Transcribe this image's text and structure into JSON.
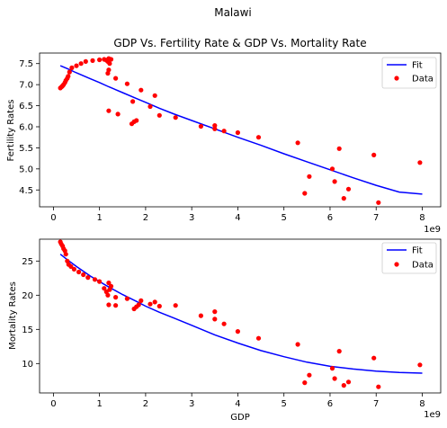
{
  "figure": {
    "suptitle": "Malawi"
  },
  "chart_data": [
    {
      "type": "scatter",
      "title": "GDP Vs. Fertility Rate & GDP Vs. Mortality Rate",
      "xlabel": "",
      "ylabel": "Fertility Rates",
      "xlim": [
        -0.3,
        8.4
      ],
      "ylim": [
        4.1,
        7.75
      ],
      "x_offset_text": "1e9",
      "x_ticks": [
        0,
        1,
        2,
        3,
        4,
        5,
        6,
        7,
        8
      ],
      "y_ticks": [
        4.5,
        5.0,
        5.5,
        6.0,
        6.5,
        7.0,
        7.5
      ],
      "y_tick_labels": [
        "4.5",
        "5.0",
        "5.5",
        "6.0",
        "6.5",
        "7.0",
        "7.5"
      ],
      "legend": {
        "position": "top-right",
        "entries": [
          "Fit",
          "Data"
        ]
      },
      "colors": {
        "fit": "#0000ff",
        "data": "#ff0000"
      },
      "series": [
        {
          "name": "Fit",
          "kind": "line",
          "x": [
            0.15,
            0.3,
            0.5,
            0.8,
            1.0,
            1.2,
            1.5,
            1.8,
            2.0,
            2.3,
            2.6,
            3.0,
            3.5,
            4.0,
            4.5,
            5.0,
            5.5,
            6.0,
            6.5,
            7.0,
            7.5,
            8.0
          ],
          "y": [
            7.45,
            7.38,
            7.28,
            7.14,
            7.05,
            6.95,
            6.81,
            6.67,
            6.58,
            6.44,
            6.31,
            6.15,
            5.95,
            5.75,
            5.56,
            5.36,
            5.17,
            4.98,
            4.79,
            4.61,
            4.45,
            4.4
          ]
        },
        {
          "name": "Data",
          "kind": "scatter",
          "x": [
            0.15,
            0.18,
            0.2,
            0.22,
            0.25,
            0.27,
            0.3,
            0.32,
            0.35,
            0.4,
            0.5,
            0.6,
            0.7,
            0.85,
            1.0,
            1.1,
            1.15,
            1.18,
            1.2,
            1.22,
            1.25,
            1.2,
            1.18,
            1.35,
            1.6,
            1.75,
            1.8,
            1.9,
            1.2,
            1.4,
            2.1,
            2.2,
            2.3,
            2.65,
            3.2,
            3.5,
            3.5,
            3.7,
            4.0,
            4.45,
            5.3,
            5.45,
            5.55,
            6.05,
            6.1,
            6.2,
            6.3,
            6.4,
            6.95,
            7.05,
            7.95,
            1.7,
            1.72
          ],
          "y": [
            6.92,
            6.95,
            6.97,
            7.0,
            7.05,
            7.1,
            7.15,
            7.2,
            7.3,
            7.4,
            7.45,
            7.5,
            7.55,
            7.57,
            7.59,
            7.6,
            7.58,
            7.55,
            7.62,
            7.5,
            7.6,
            7.35,
            7.27,
            7.15,
            7.02,
            6.12,
            6.15,
            6.87,
            6.38,
            6.3,
            6.48,
            6.74,
            6.27,
            6.22,
            6.01,
            5.95,
            6.03,
            5.9,
            5.86,
            5.75,
            5.62,
            4.42,
            4.82,
            5.0,
            4.7,
            5.48,
            4.3,
            4.52,
            5.33,
            4.2,
            5.15,
            6.07,
            6.6
          ]
        }
      ]
    },
    {
      "type": "scatter",
      "title": "",
      "xlabel": "GDP",
      "ylabel": "Mortality Rates",
      "xlim": [
        -0.3,
        8.4
      ],
      "ylim": [
        5.7,
        28.2
      ],
      "x_offset_text": "1e9",
      "x_ticks": [
        0,
        1,
        2,
        3,
        4,
        5,
        6,
        7,
        8
      ],
      "y_ticks": [
        10,
        15,
        20,
        25
      ],
      "y_tick_labels": [
        "10",
        "15",
        "20",
        "25"
      ],
      "legend": {
        "position": "top-right",
        "entries": [
          "Fit",
          "Data"
        ]
      },
      "colors": {
        "fit": "#0000ff",
        "data": "#ff0000"
      },
      "series": [
        {
          "name": "Fit",
          "kind": "line",
          "x": [
            0.15,
            0.3,
            0.5,
            0.8,
            1.0,
            1.2,
            1.5,
            1.8,
            2.0,
            2.3,
            2.6,
            3.0,
            3.5,
            4.0,
            4.5,
            5.0,
            5.5,
            6.0,
            6.5,
            7.0,
            7.5,
            8.0
          ],
          "y": [
            26.0,
            25.2,
            24.2,
            22.8,
            22.0,
            21.2,
            20.1,
            19.1,
            18.4,
            17.5,
            16.7,
            15.6,
            14.2,
            13.0,
            11.9,
            11.0,
            10.2,
            9.6,
            9.2,
            8.9,
            8.7,
            8.6
          ]
        },
        {
          "name": "Data",
          "kind": "scatter",
          "x": [
            0.15,
            0.17,
            0.2,
            0.22,
            0.25,
            0.27,
            0.3,
            0.33,
            0.38,
            0.45,
            0.55,
            0.65,
            0.75,
            0.9,
            1.0,
            1.1,
            1.15,
            1.2,
            1.22,
            1.25,
            1.18,
            1.2,
            1.35,
            1.35,
            1.6,
            1.75,
            1.8,
            1.85,
            1.9,
            2.1,
            2.2,
            2.3,
            2.65,
            3.2,
            3.5,
            3.5,
            3.7,
            4.0,
            4.45,
            5.3,
            5.45,
            5.55,
            6.05,
            6.1,
            6.2,
            6.3,
            6.4,
            6.95,
            7.05,
            7.95
          ],
          "y": [
            27.8,
            27.5,
            27.2,
            26.8,
            26.5,
            26.0,
            25.0,
            24.5,
            24.2,
            23.8,
            23.4,
            23.0,
            22.6,
            22.3,
            22.0,
            21.0,
            20.5,
            21.8,
            20.8,
            21.3,
            20.0,
            18.6,
            19.7,
            18.5,
            19.5,
            18.0,
            18.3,
            18.6,
            19.2,
            18.7,
            19.0,
            18.4,
            18.5,
            17.0,
            16.5,
            17.6,
            15.8,
            14.7,
            13.7,
            12.8,
            7.2,
            8.3,
            9.3,
            7.8,
            11.8,
            6.8,
            7.3,
            10.8,
            6.6,
            9.8
          ]
        }
      ]
    }
  ]
}
